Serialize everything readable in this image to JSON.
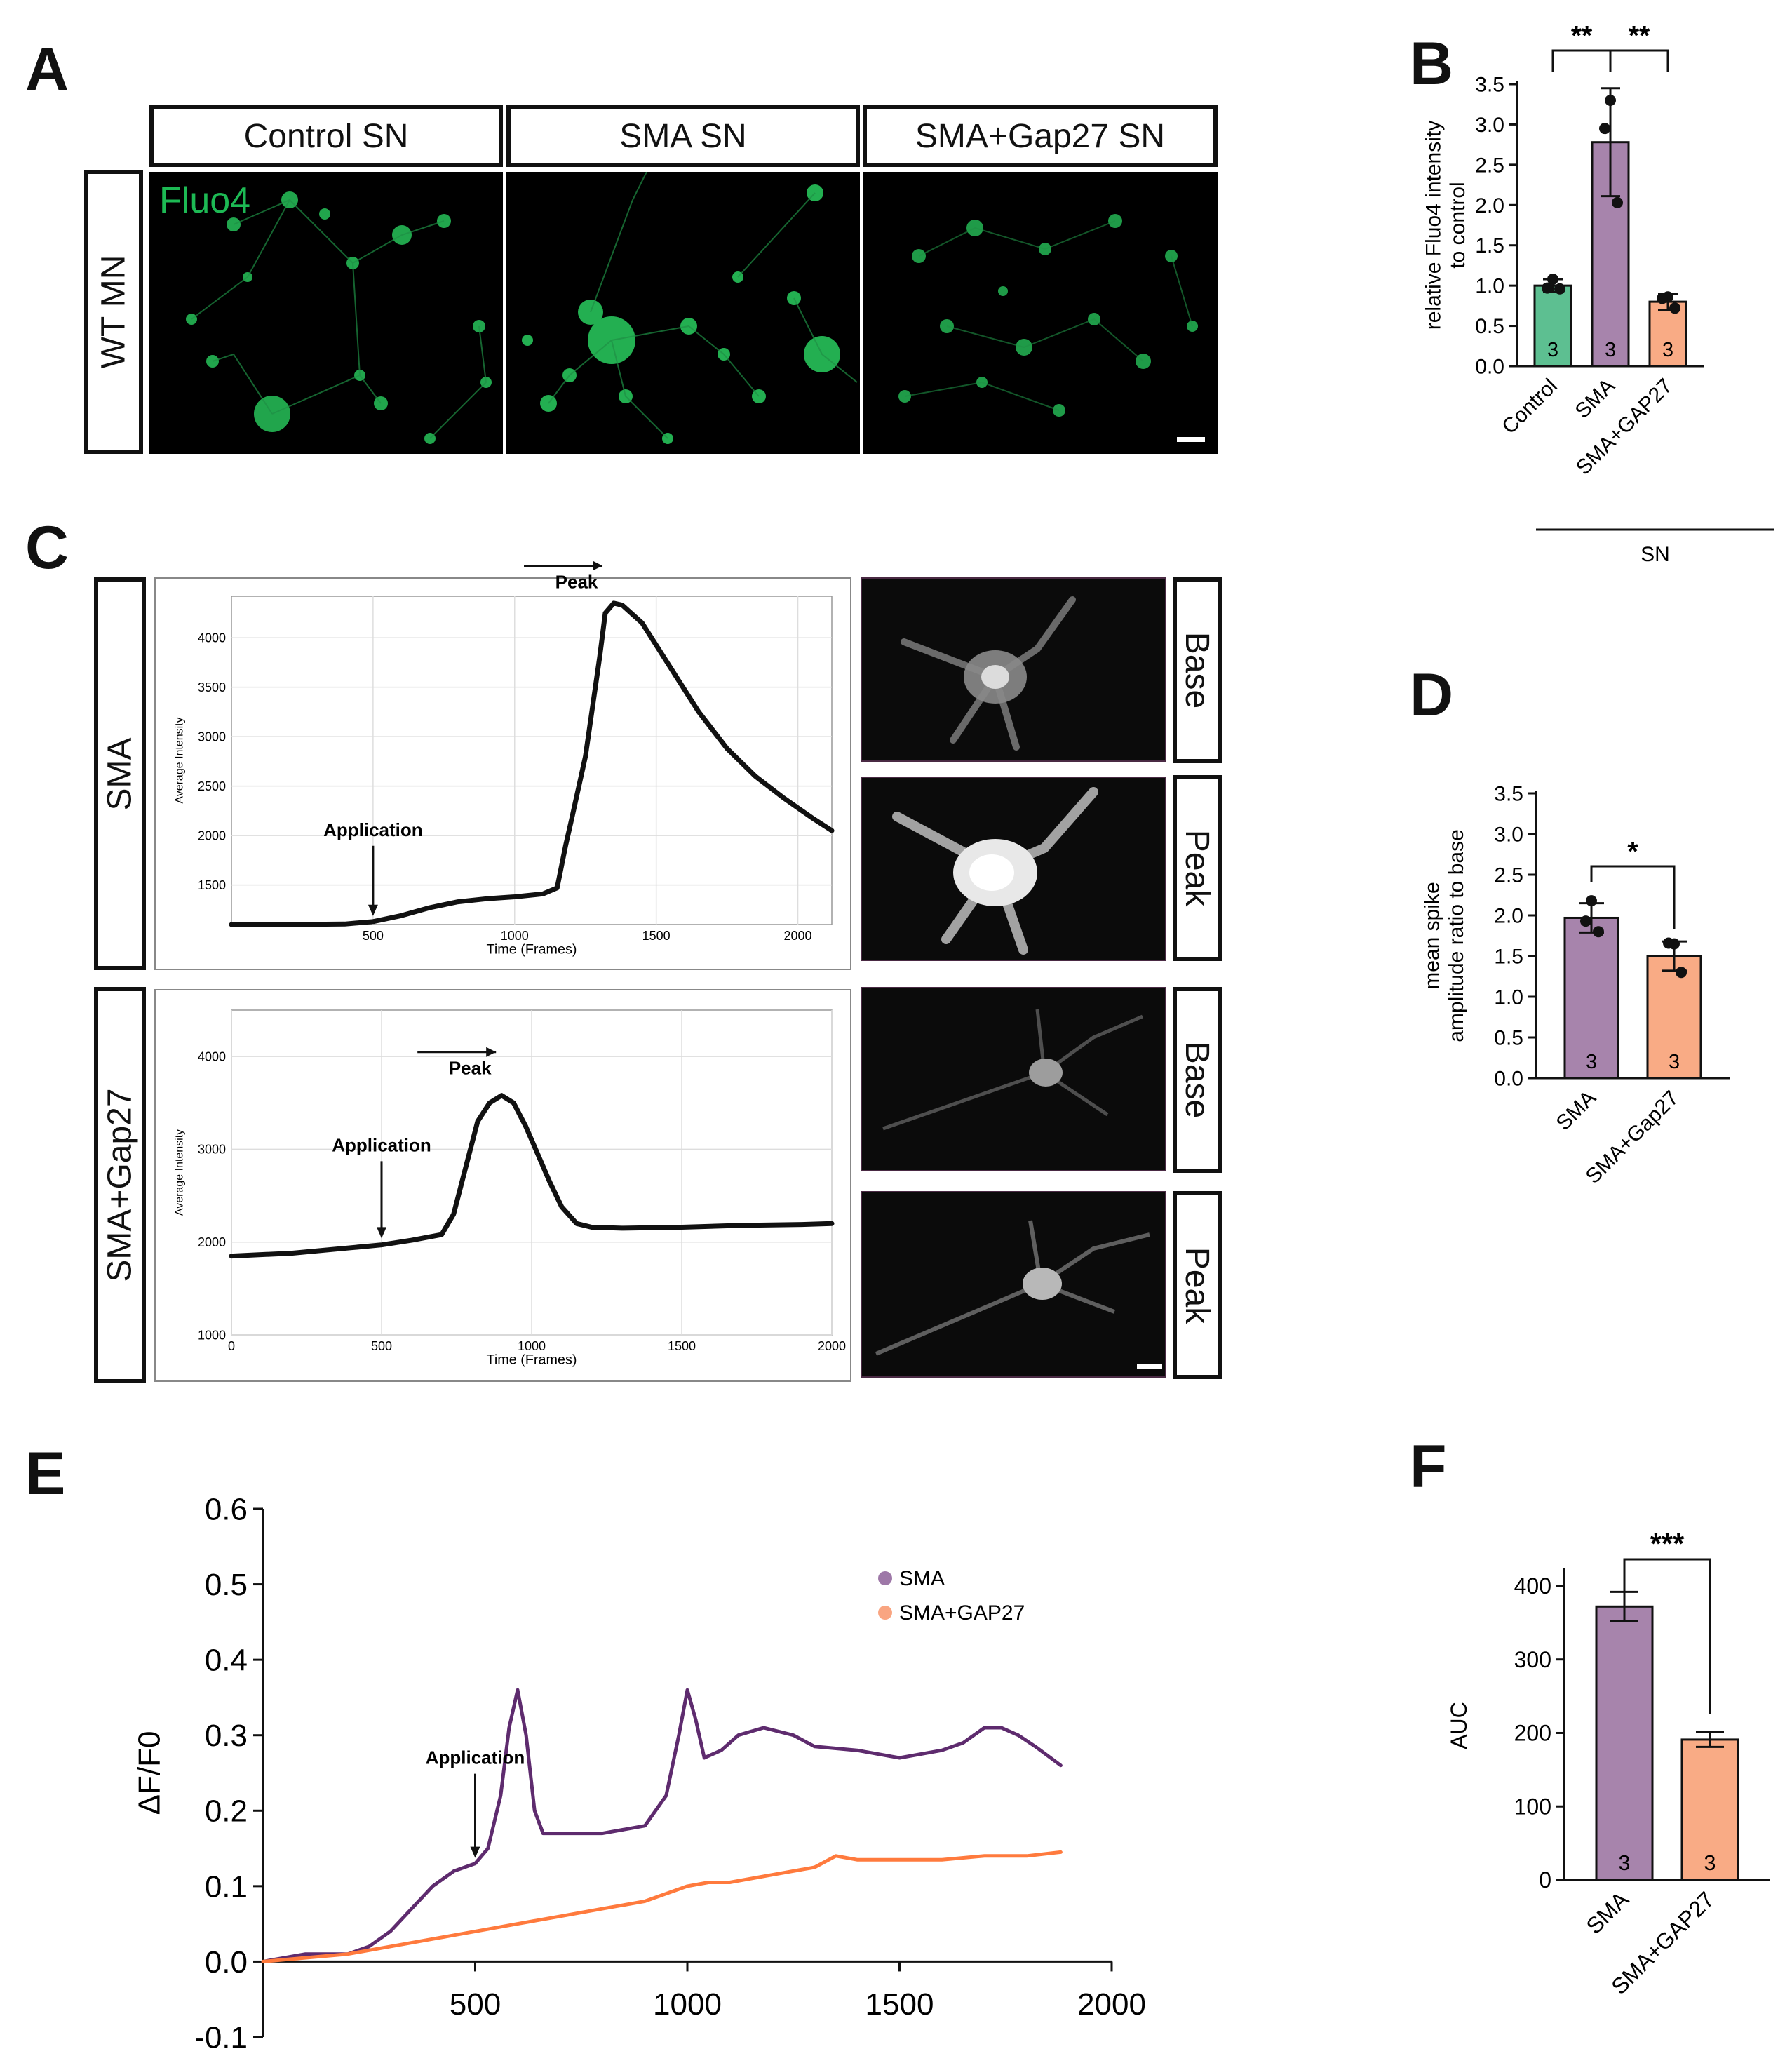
{
  "panels": {
    "A": "A",
    "B": "B",
    "C": "C",
    "D": "D",
    "E": "E",
    "F": "F"
  },
  "panel_a": {
    "columns": [
      "Control SN",
      "SMA SN",
      "SMA+Gap27 SN"
    ],
    "row_label": "WT MN",
    "stain_label": "Fluo4",
    "stain_color": "#1db954"
  },
  "panel_c": {
    "row_labels": [
      "SMA",
      "SMA+Gap27"
    ],
    "image_labels": [
      "Base",
      "Peak",
      "Base",
      "Peak"
    ]
  },
  "chart_data": [
    {
      "id": "B",
      "type": "bar",
      "ylabel": "relative Fluo4 intensity\nto control",
      "xgroup_label": "SN",
      "categories": [
        "Control",
        "SMA",
        "SMA+GAP27"
      ],
      "values": [
        1.0,
        2.78,
        0.8
      ],
      "errors": [
        0.08,
        0.67,
        0.1
      ],
      "points": [
        [
          1.08,
          0.97,
          0.96
        ],
        [
          3.3,
          2.95,
          2.03
        ],
        [
          0.86,
          0.84,
          0.72
        ]
      ],
      "n_labels": [
        "3",
        "3",
        "3"
      ],
      "colors": [
        "#5dbf91",
        "#a784ac",
        "#f9ab85"
      ],
      "ylim": [
        0,
        3.5
      ],
      "yticks": [
        "0.0",
        "0.5",
        "1.0",
        "1.5",
        "2.0",
        "2.5",
        "3.0",
        "3.5"
      ],
      "significance": [
        {
          "pair": [
            0,
            1
          ],
          "label": "**"
        },
        {
          "pair": [
            1,
            2
          ],
          "label": "**"
        }
      ]
    },
    {
      "id": "C-top",
      "type": "line",
      "xlabel": "Time (Frames)",
      "ylabel": "Average Intensity",
      "xlim": [
        0,
        2120
      ],
      "ylim": [
        1100,
        4420
      ],
      "xticks": [
        "500",
        "1000",
        "1500",
        "2000"
      ],
      "yticks": [
        "1500",
        "2000",
        "2500",
        "3000",
        "3500",
        "4000"
      ],
      "x": [
        0,
        200,
        400,
        500,
        600,
        700,
        800,
        900,
        1000,
        1100,
        1150,
        1180,
        1200,
        1250,
        1300,
        1320,
        1350,
        1380,
        1450,
        1550,
        1650,
        1750,
        1850,
        1950,
        2050,
        2120
      ],
      "y": [
        1100,
        1100,
        1105,
        1130,
        1190,
        1270,
        1330,
        1360,
        1380,
        1410,
        1470,
        1900,
        2150,
        2800,
        3800,
        4250,
        4350,
        4330,
        4150,
        3700,
        3250,
        2880,
        2600,
        2380,
        2180,
        2050
      ],
      "annotations": [
        {
          "text": "Peak",
          "x": 1330,
          "y": 4360
        },
        {
          "text": "Application",
          "x": 500,
          "y": 1130
        }
      ]
    },
    {
      "id": "C-bottom",
      "type": "line",
      "xlabel": "Time (Frames)",
      "ylabel": "Average Intensity",
      "xlim": [
        0,
        2000
      ],
      "ylim": [
        1000,
        4500
      ],
      "xticks": [
        "0",
        "500",
        "1000",
        "1500",
        "2000"
      ],
      "yticks": [
        "1000",
        "2000",
        "3000",
        "4000"
      ],
      "x": [
        0,
        200,
        400,
        500,
        600,
        700,
        740,
        780,
        820,
        860,
        900,
        940,
        980,
        1020,
        1060,
        1100,
        1150,
        1200,
        1300,
        1500,
        1700,
        1900,
        2000
      ],
      "y": [
        1850,
        1880,
        1940,
        1970,
        2020,
        2080,
        2300,
        2800,
        3300,
        3500,
        3580,
        3500,
        3250,
        2950,
        2650,
        2380,
        2200,
        2160,
        2150,
        2160,
        2180,
        2190,
        2200
      ],
      "annotations": [
        {
          "text": "Peak",
          "x": 900,
          "y": 3580
        },
        {
          "text": "Application",
          "x": 500,
          "y": 1980
        }
      ]
    },
    {
      "id": "D",
      "type": "bar",
      "ylabel": "mean spike\namplitude ratio to base",
      "categories": [
        "SMA",
        "SMA+Gap27"
      ],
      "values": [
        1.97,
        1.5
      ],
      "errors": [
        0.18,
        0.18
      ],
      "points": [
        [
          2.18,
          1.93,
          1.8
        ],
        [
          1.65,
          1.66,
          1.3
        ]
      ],
      "n_labels": [
        "3",
        "3"
      ],
      "colors": [
        "#a784ac",
        "#f9ab85"
      ],
      "ylim": [
        0,
        3.5
      ],
      "yticks": [
        "0.0",
        "0.5",
        "1.0",
        "1.5",
        "2.0",
        "2.5",
        "3.0",
        "3.5"
      ],
      "significance": [
        {
          "pair": [
            0,
            1
          ],
          "label": "*"
        }
      ]
    },
    {
      "id": "E",
      "type": "line",
      "ylabel": "ΔF/F0",
      "xlim": [
        0,
        2000
      ],
      "ylim": [
        -0.1,
        0.6
      ],
      "xticks": [
        "500",
        "1000",
        "1500",
        "2000"
      ],
      "yticks": [
        "-0.1",
        "0.0",
        "0.1",
        "0.2",
        "0.3",
        "0.4",
        "0.5",
        "0.6"
      ],
      "legend_position": "top-right",
      "series": [
        {
          "name": "SMA",
          "color": "#5e2b6e",
          "x": [
            0,
            100,
            200,
            250,
            300,
            350,
            400,
            450,
            500,
            530,
            560,
            580,
            600,
            620,
            640,
            660,
            700,
            800,
            900,
            950,
            980,
            1000,
            1020,
            1040,
            1080,
            1120,
            1180,
            1250,
            1300,
            1400,
            1500,
            1600,
            1650,
            1700,
            1740,
            1780,
            1820,
            1880
          ],
          "y": [
            0.0,
            0.01,
            0.01,
            0.02,
            0.04,
            0.07,
            0.1,
            0.12,
            0.13,
            0.15,
            0.22,
            0.31,
            0.36,
            0.3,
            0.2,
            0.17,
            0.17,
            0.17,
            0.18,
            0.22,
            0.3,
            0.36,
            0.32,
            0.27,
            0.28,
            0.3,
            0.31,
            0.3,
            0.285,
            0.28,
            0.27,
            0.28,
            0.29,
            0.31,
            0.31,
            0.3,
            0.285,
            0.26
          ]
        },
        {
          "name": "SMA+GAP27",
          "color": "#ff7a3d",
          "x": [
            0,
            200,
            300,
            400,
            500,
            600,
            700,
            800,
            900,
            1000,
            1050,
            1100,
            1200,
            1300,
            1350,
            1400,
            1500,
            1600,
            1700,
            1800,
            1880
          ],
          "y": [
            0.0,
            0.01,
            0.02,
            0.03,
            0.04,
            0.05,
            0.06,
            0.07,
            0.08,
            0.1,
            0.105,
            0.105,
            0.115,
            0.125,
            0.14,
            0.135,
            0.135,
            0.135,
            0.14,
            0.14,
            0.145
          ]
        }
      ],
      "annotations": [
        {
          "text": "Application",
          "x": 500,
          "y": 0.13
        }
      ]
    },
    {
      "id": "F",
      "type": "bar",
      "ylabel": "AUC",
      "categories": [
        "SMA",
        "SMA+GAP27"
      ],
      "values": [
        372,
        191
      ],
      "errors": [
        20,
        10
      ],
      "n_labels": [
        "3",
        "3"
      ],
      "colors": [
        "#a784ac",
        "#f9ab85"
      ],
      "ylim": [
        0,
        420
      ],
      "yticks": [
        "0",
        "100",
        "200",
        "300",
        "400"
      ],
      "significance": [
        {
          "pair": [
            0,
            1
          ],
          "label": "***"
        }
      ]
    }
  ]
}
